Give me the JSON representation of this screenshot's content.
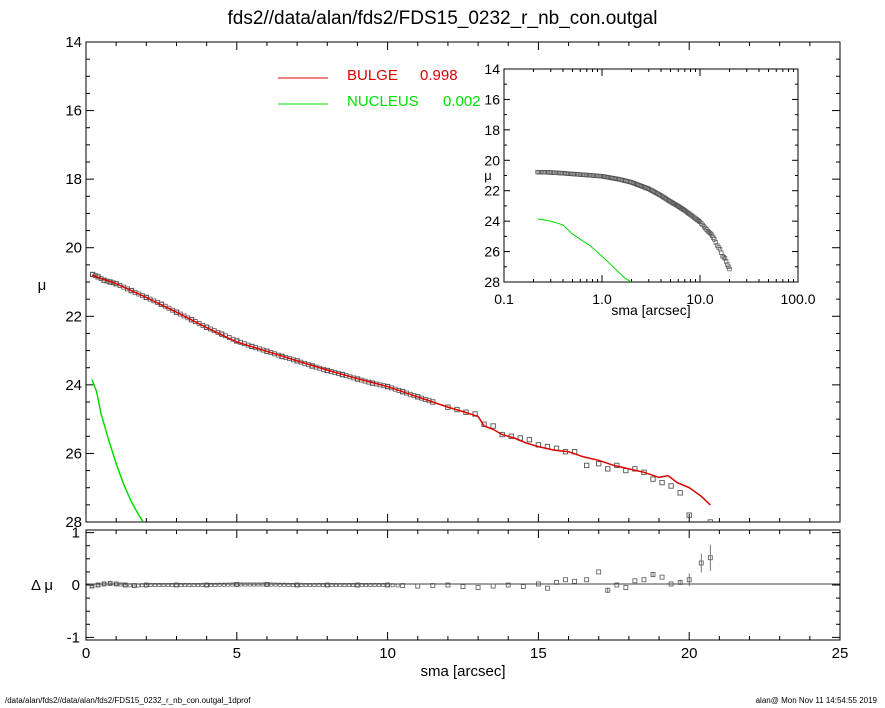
{
  "title": "fds2//data/alan/fds2/FDS15_0232_r_nb_con.outgal",
  "footer": {
    "left": "/data/alan/fds2//data/alan/fds2/FDS15_0232_r_nb_con.outgal_1dprof",
    "right": "alan@  Mon Nov 11 14:54:55 2019"
  },
  "colors": {
    "bulge": "#dd0000",
    "nucleus": "#00dd00",
    "data": "#555555",
    "axes": "#000000"
  },
  "legend": {
    "bulge_label": "BULGE",
    "bulge_value": "0.998",
    "nucleus_label": "NUCLEUS",
    "nucleus_value": "0.002"
  },
  "chart_data": [
    {
      "type": "scatter",
      "panel": "main profile",
      "xlabel": "",
      "ylabel": "μ",
      "xlim": [
        0,
        25
      ],
      "ylim": [
        28,
        14
      ],
      "y_inverted": true,
      "yticks": [
        14,
        16,
        18,
        20,
        22,
        24,
        26,
        28
      ],
      "series": [
        {
          "name": "data",
          "marker": "square",
          "x": [
            0.22,
            0.4,
            0.6,
            0.8,
            1.0,
            1.5,
            2.0,
            2.5,
            3.0,
            3.5,
            4.0,
            4.5,
            5.0,
            5.5,
            6.0,
            6.5,
            7.0,
            7.5,
            8.0,
            8.5,
            9.0,
            9.5,
            10.0,
            10.5,
            11.0,
            11.5,
            12.0,
            12.3,
            12.6,
            12.9,
            13.2,
            13.5,
            13.8,
            14.1,
            14.4,
            14.7,
            15.0,
            15.3,
            15.6,
            15.9,
            16.2,
            16.6,
            17.0,
            17.3,
            17.6,
            17.9,
            18.2,
            18.5,
            18.8,
            19.1,
            19.4,
            19.7,
            20.0,
            20.7
          ],
          "y": [
            20.78,
            20.85,
            20.95,
            21.0,
            21.05,
            21.25,
            21.45,
            21.65,
            21.88,
            22.1,
            22.32,
            22.52,
            22.72,
            22.88,
            23.02,
            23.17,
            23.3,
            23.45,
            23.58,
            23.7,
            23.83,
            23.95,
            24.05,
            24.2,
            24.35,
            24.5,
            24.65,
            24.72,
            24.8,
            24.85,
            25.15,
            25.2,
            25.45,
            25.5,
            25.55,
            25.6,
            25.75,
            25.8,
            25.85,
            25.95,
            25.95,
            26.35,
            26.3,
            26.45,
            26.35,
            26.5,
            26.45,
            26.55,
            26.75,
            26.85,
            26.95,
            27.15,
            27.8,
            28.0
          ]
        },
        {
          "name": "BULGE",
          "x": [
            0.2,
            0.5,
            1.0,
            2.0,
            3.0,
            4.0,
            5.0,
            6.0,
            7.0,
            8.0,
            9.0,
            10.0,
            11.0,
            12.0,
            12.5,
            13.0,
            13.2,
            13.5,
            13.8,
            14.2,
            14.6,
            15.0,
            15.5,
            16.0,
            16.5,
            17.0,
            17.5,
            18.0,
            18.5,
            19.0,
            19.3,
            19.6,
            20.0,
            20.4,
            20.7
          ],
          "y": [
            20.8,
            20.9,
            21.05,
            21.45,
            21.88,
            22.33,
            22.75,
            23.02,
            23.3,
            23.57,
            23.82,
            24.05,
            24.35,
            24.65,
            24.78,
            24.92,
            25.2,
            25.3,
            25.45,
            25.55,
            25.7,
            25.8,
            25.9,
            25.95,
            26.1,
            26.2,
            26.35,
            26.45,
            26.55,
            26.7,
            26.65,
            26.85,
            27.0,
            27.25,
            27.5
          ]
        },
        {
          "name": "NUCLEUS",
          "x": [
            0.2,
            0.35,
            0.5,
            0.75,
            1.0,
            1.25,
            1.5,
            1.75,
            1.9
          ],
          "y": [
            23.85,
            24.2,
            24.85,
            25.6,
            26.3,
            26.9,
            27.4,
            27.8,
            28.0
          ]
        }
      ]
    },
    {
      "type": "scatter",
      "panel": "inset log profile",
      "xscale": "log",
      "xlabel": "sma [arcsec]",
      "ylabel": "μ",
      "xlim": [
        0.1,
        100
      ],
      "ylim": [
        28,
        14
      ],
      "y_inverted": true,
      "xtick_labels": [
        "0.1",
        "1.0",
        "10.0",
        "100.0"
      ],
      "yticks": [
        14,
        16,
        18,
        20,
        22,
        24,
        26,
        28
      ],
      "series": [
        {
          "name": "data",
          "x": [
            0.22,
            0.3,
            0.4,
            0.5,
            0.7,
            1.0,
            1.5,
            2.0,
            3.0,
            4.0,
            5.0,
            6.0,
            7.0,
            8.0,
            9.0,
            10.0,
            11.0,
            12.0,
            13.0,
            14.0,
            15.0,
            16.0,
            17.0,
            18.0,
            19.0,
            20.0,
            20.7
          ],
          "y": [
            20.78,
            20.8,
            20.85,
            20.9,
            20.97,
            21.05,
            21.25,
            21.45,
            21.88,
            22.32,
            22.72,
            23.02,
            23.3,
            23.58,
            23.83,
            24.05,
            24.35,
            24.65,
            24.85,
            25.2,
            25.6,
            25.85,
            26.3,
            26.45,
            26.85,
            27.15,
            28.0
          ]
        },
        {
          "name": "NUCLEUS",
          "x": [
            0.22,
            0.3,
            0.4,
            0.5,
            0.75,
            1.0,
            1.25,
            1.5,
            1.75,
            2.0
          ],
          "y": [
            23.85,
            24.0,
            24.25,
            24.85,
            25.6,
            26.3,
            26.9,
            27.4,
            27.8,
            28.0
          ]
        }
      ]
    },
    {
      "type": "scatter",
      "panel": "residuals",
      "xlabel": "sma [arcsec]",
      "ylabel": "Δ μ",
      "xlim": [
        0,
        25
      ],
      "ylim": [
        -1.05,
        1.05
      ],
      "yticks": [
        -1,
        0,
        1
      ],
      "xticks": [
        0,
        5,
        10,
        15,
        20,
        25
      ],
      "series": [
        {
          "name": "residual",
          "x": [
            0.2,
            0.4,
            0.6,
            0.8,
            1.0,
            1.3,
            1.6,
            2.0,
            3,
            4,
            5,
            6,
            7,
            8,
            9,
            10,
            10.5,
            11,
            11.5,
            12,
            12.5,
            13,
            13.5,
            14,
            14.5,
            15,
            15.3,
            15.6,
            15.9,
            16.2,
            16.6,
            17.0,
            17.3,
            17.6,
            17.9,
            18.2,
            18.5,
            18.8,
            19.1,
            19.4,
            19.7,
            20.0,
            20.4,
            20.7
          ],
          "y": [
            -0.02,
            0.0,
            0.02,
            0.03,
            0.02,
            0.0,
            -0.01,
            0.0,
            0.0,
            0.0,
            0.01,
            0.01,
            0.0,
            0.0,
            0.0,
            0.0,
            -0.01,
            -0.02,
            -0.01,
            0.0,
            -0.03,
            -0.05,
            -0.02,
            0.0,
            -0.03,
            0.02,
            -0.06,
            0.05,
            0.1,
            0.07,
            0.1,
            0.25,
            -0.1,
            0.0,
            -0.05,
            0.08,
            0.1,
            0.2,
            0.15,
            0.02,
            0.05,
            0.1,
            0.42,
            0.52
          ],
          "err": [
            0.01,
            0.01,
            0.01,
            0.01,
            0.01,
            0.01,
            0.01,
            0.01,
            0,
            0,
            0,
            0,
            0,
            0,
            0,
            0,
            0,
            0,
            0,
            0,
            0,
            0,
            0,
            0,
            0,
            0,
            0,
            0,
            0,
            0,
            0,
            0,
            0.05,
            0,
            0,
            0,
            0,
            0.05,
            0,
            0,
            0.05,
            0.12,
            0.18,
            0.25
          ]
        }
      ]
    }
  ]
}
